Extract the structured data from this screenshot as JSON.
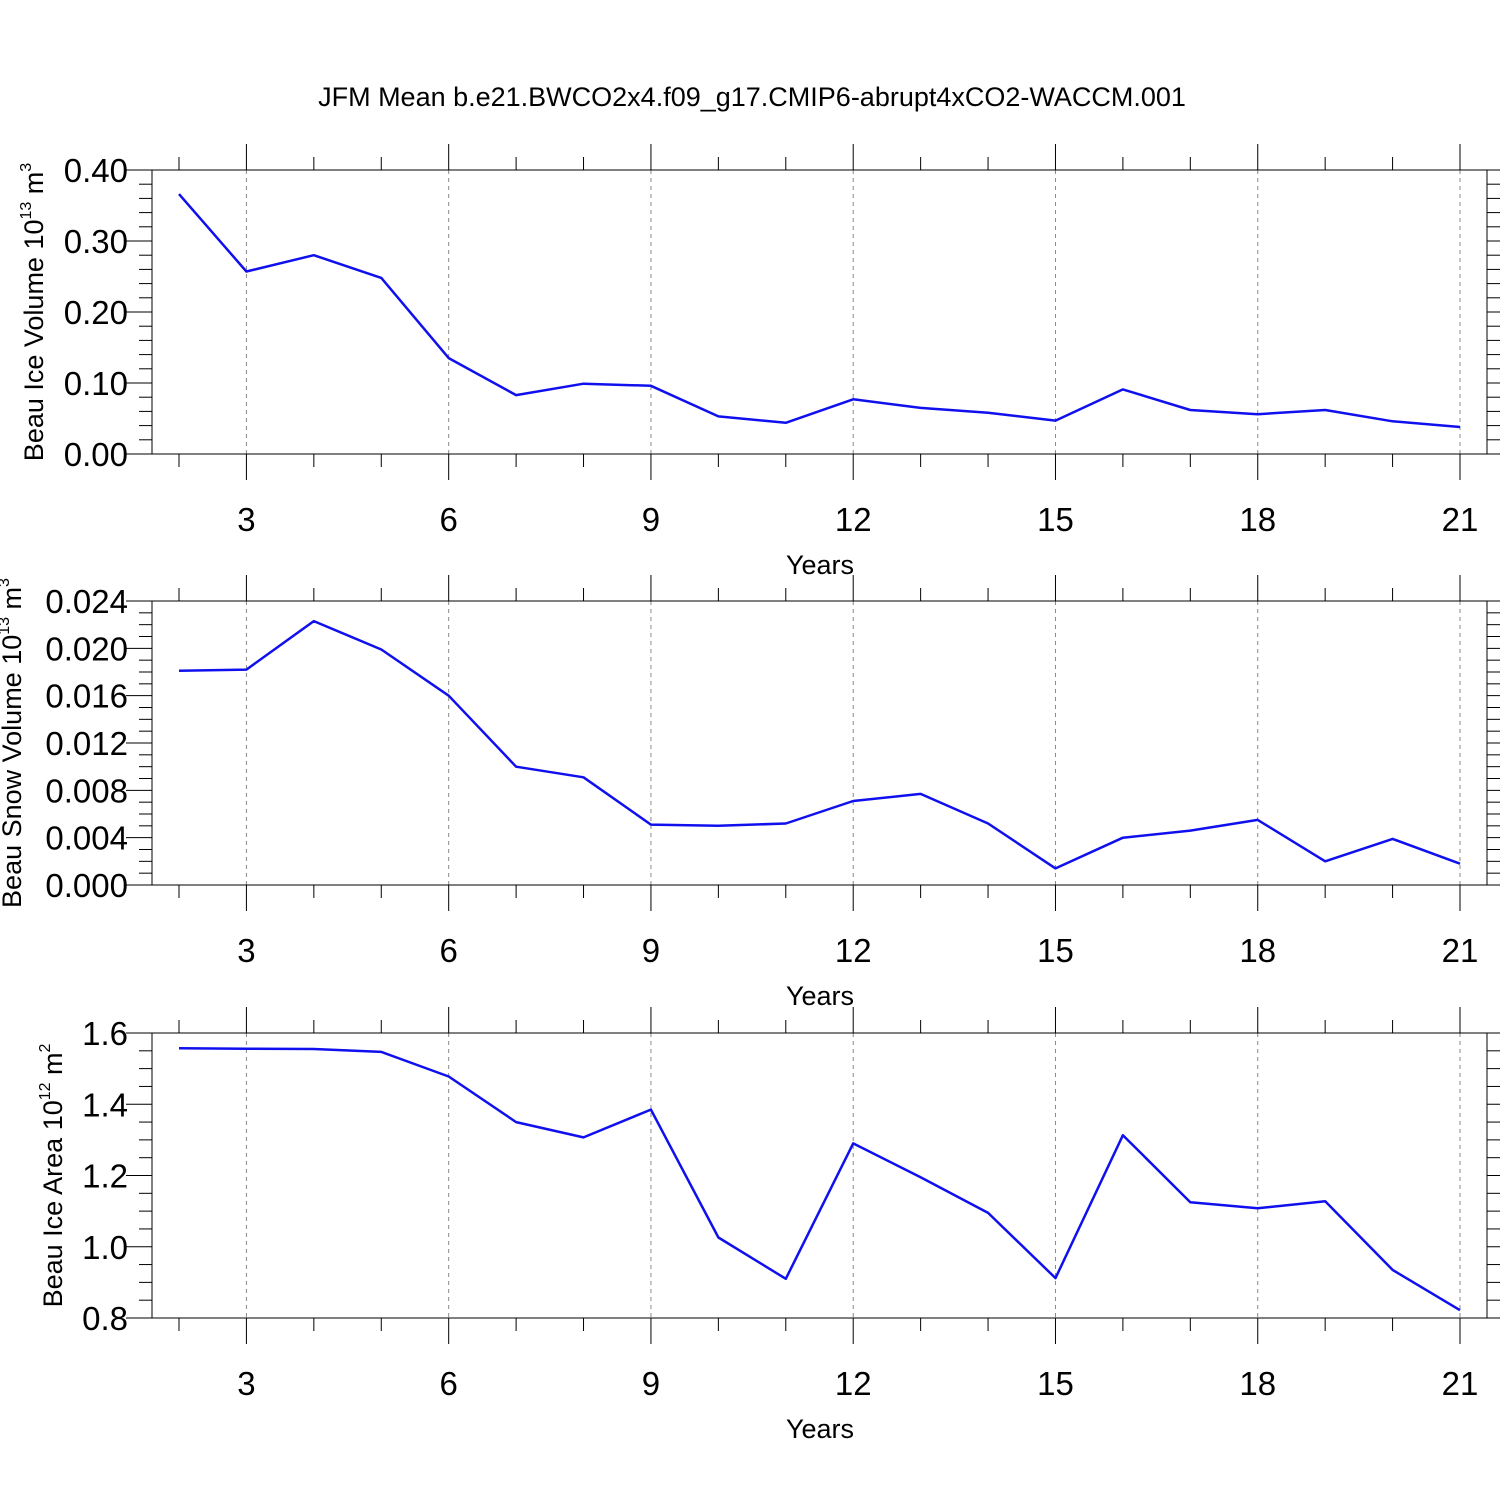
{
  "figure_title": "JFM Mean b.e21.BWCO2x4.f09_g17.CMIP6-abrupt4xCO2-WACCM.001",
  "colors": {
    "line": "#1010ee",
    "axis": "#000000",
    "grid": "#888888"
  },
  "chart_data": [
    {
      "type": "line",
      "title": "",
      "xlabel": "Years",
      "ylabel": {
        "text": "Beau Ice Volume 10",
        "sup": "13",
        "unit": " m",
        "unit_sup": "3"
      },
      "xlim": [
        2,
        21
      ],
      "ylim": [
        0,
        0.4
      ],
      "x_ticks": [
        3,
        6,
        9,
        12,
        15,
        18,
        21
      ],
      "x_tick_labels": [
        "3",
        "6",
        "9",
        "12",
        "15",
        "18",
        "21"
      ],
      "y_ticks": [
        0,
        0.1,
        0.2,
        0.3,
        0.4
      ],
      "y_tick_labels": [
        "0.00",
        "0.10",
        "0.20",
        "0.30",
        "0.40"
      ],
      "y_minor_step": 0.02,
      "grid": "vertical dashed at major x ticks",
      "x": [
        2,
        3,
        4,
        5,
        6,
        7,
        8,
        9,
        10,
        11,
        12,
        13,
        14,
        15,
        16,
        17,
        18,
        19,
        20,
        21
      ],
      "series": [
        {
          "values": [
            0.366,
            0.257,
            0.28,
            0.248,
            0.135,
            0.083,
            0.099,
            0.096,
            0.053,
            0.044,
            0.077,
            0.065,
            0.058,
            0.047,
            0.091,
            0.062,
            0.056,
            0.062,
            0.046,
            0.038
          ]
        }
      ]
    },
    {
      "type": "line",
      "title": "",
      "xlabel": "Years",
      "ylabel": {
        "text": "Beau Snow Volume 10",
        "sup": "13",
        "unit": " m",
        "unit_sup": "3"
      },
      "xlim": [
        2,
        21
      ],
      "ylim": [
        0,
        0.024
      ],
      "x_ticks": [
        3,
        6,
        9,
        12,
        15,
        18,
        21
      ],
      "x_tick_labels": [
        "3",
        "6",
        "9",
        "12",
        "15",
        "18",
        "21"
      ],
      "y_ticks": [
        0,
        0.004,
        0.008,
        0.012,
        0.016,
        0.02,
        0.024
      ],
      "y_tick_labels": [
        "0.000",
        "0.004",
        "0.008",
        "0.012",
        "0.016",
        "0.020",
        "0.024"
      ],
      "y_minor_step": 0.001,
      "grid": "vertical dashed at major x ticks",
      "x": [
        2,
        3,
        4,
        5,
        6,
        7,
        8,
        9,
        10,
        11,
        12,
        13,
        14,
        15,
        16,
        17,
        18,
        19,
        20,
        21
      ],
      "series": [
        {
          "values": [
            0.0181,
            0.0182,
            0.0223,
            0.0199,
            0.016,
            0.01,
            0.0091,
            0.0051,
            0.005,
            0.0052,
            0.0071,
            0.0077,
            0.0052,
            0.0014,
            0.004,
            0.0046,
            0.0055,
            0.002,
            0.0039,
            0.0018
          ]
        }
      ]
    },
    {
      "type": "line",
      "title": "",
      "xlabel": "Years",
      "ylabel": {
        "text": "Beau Ice Area 10",
        "sup": "12",
        "unit": " m",
        "unit_sup": "2"
      },
      "xlim": [
        2,
        21
      ],
      "ylim": [
        0.8,
        1.6
      ],
      "x_ticks": [
        3,
        6,
        9,
        12,
        15,
        18,
        21
      ],
      "x_tick_labels": [
        "3",
        "6",
        "9",
        "12",
        "15",
        "18",
        "21"
      ],
      "y_ticks": [
        0.8,
        1.0,
        1.2,
        1.4,
        1.6
      ],
      "y_tick_labels": [
        "0.8",
        "1.0",
        "1.2",
        "1.4",
        "1.6"
      ],
      "y_minor_step": 0.05,
      "grid": "vertical dashed at major x ticks",
      "x": [
        2,
        3,
        4,
        5,
        6,
        7,
        8,
        9,
        10,
        11,
        12,
        13,
        14,
        15,
        16,
        17,
        18,
        19,
        20,
        21
      ],
      "series": [
        {
          "values": [
            1.557,
            1.556,
            1.555,
            1.547,
            1.478,
            1.35,
            1.307,
            1.385,
            1.026,
            0.91,
            1.29,
            1.195,
            1.095,
            0.912,
            1.313,
            1.125,
            1.108,
            1.128,
            0.935,
            0.822
          ]
        }
      ]
    }
  ]
}
